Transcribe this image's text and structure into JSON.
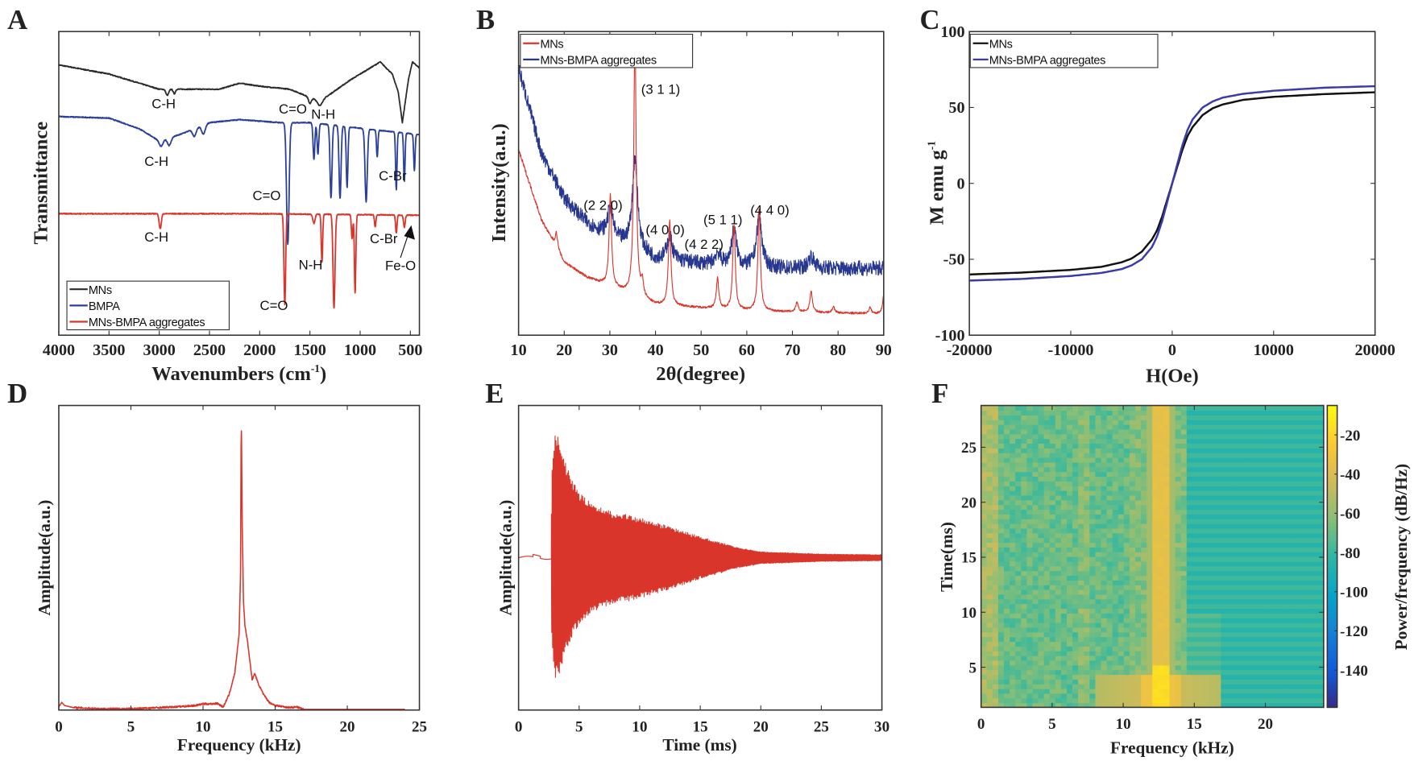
{
  "panels": [
    "A",
    "B",
    "C",
    "D",
    "E",
    "F"
  ],
  "chart_data": [
    {
      "type": "line",
      "panel": "A",
      "xlabel": "Wavenumbers (cm",
      "xlabel_sup": "-1",
      "xlabel_end": ")",
      "ylabel": "Transmittance",
      "xlim": [
        4000,
        410
      ],
      "ylim": [
        0,
        1
      ],
      "xticks": [
        4000,
        3500,
        3000,
        2500,
        2000,
        1500,
        1000,
        500
      ],
      "legend": {
        "placement": "bottom-left",
        "entries": [
          "MNs",
          "BMPA",
          "MNs-BMPA aggregates"
        ]
      },
      "series": [
        {
          "name": "MNs",
          "color": "#2b2b2b",
          "baseline": [
            [
              4000,
              0.89
            ],
            [
              3500,
              0.86
            ],
            [
              3000,
              0.81
            ],
            [
              2400,
              0.81
            ],
            [
              2200,
              0.83
            ],
            [
              2000,
              0.82
            ],
            [
              1700,
              0.81
            ],
            [
              1550,
              0.79
            ],
            [
              1400,
              0.77
            ],
            [
              1100,
              0.84
            ],
            [
              800,
              0.9
            ],
            [
              680,
              0.86
            ],
            [
              620,
              0.8
            ],
            [
              580,
              0.7
            ],
            [
              520,
              0.84
            ],
            [
              480,
              0.9
            ],
            [
              410,
              0.88
            ]
          ],
          "peaks": [
            [
              2920,
              0.02,
              20
            ],
            [
              2850,
              0.015,
              15
            ],
            [
              1500,
              0.02,
              20
            ],
            [
              1400,
              0.015,
              30
            ]
          ]
        },
        {
          "name": "BMPA",
          "color": "#2a3f9a",
          "baseline": [
            [
              4000,
              0.72
            ],
            [
              3500,
              0.715
            ],
            [
              3200,
              0.68
            ],
            [
              3000,
              0.64
            ],
            [
              2800,
              0.66
            ],
            [
              2500,
              0.7
            ],
            [
              2200,
              0.71
            ],
            [
              1800,
              0.7
            ],
            [
              1500,
              0.7
            ],
            [
              410,
              0.66
            ]
          ],
          "peaks": [
            [
              2980,
              0.02,
              25
            ],
            [
              2900,
              0.025,
              25
            ],
            [
              2650,
              0.025,
              25
            ],
            [
              2560,
              0.03,
              25
            ],
            [
              1720,
              0.4,
              18
            ],
            [
              1460,
              0.12,
              12
            ],
            [
              1420,
              0.1,
              12
            ],
            [
              1290,
              0.24,
              14
            ],
            [
              1200,
              0.24,
              14
            ],
            [
              1130,
              0.2,
              12
            ],
            [
              940,
              0.24,
              16
            ],
            [
              830,
              0.09,
              10
            ],
            [
              640,
              0.19,
              10
            ],
            [
              560,
              0.16,
              10
            ],
            [
              460,
              0.12,
              10
            ]
          ]
        },
        {
          "name": "MNs-BMPA aggregates",
          "color": "#d9352b",
          "baseline": [
            [
              4000,
              0.4
            ],
            [
              2000,
              0.4
            ],
            [
              410,
              0.395
            ]
          ],
          "peaks": [
            [
              2990,
              0.05,
              15
            ],
            [
              1750,
              0.3,
              12
            ],
            [
              1460,
              0.03,
              15
            ],
            [
              1380,
              0.16,
              10
            ],
            [
              1260,
              0.31,
              14
            ],
            [
              1080,
              0.08,
              10
            ],
            [
              1050,
              0.26,
              10
            ],
            [
              850,
              0.04,
              10
            ],
            [
              640,
              0.06,
              10
            ],
            [
              560,
              0.04,
              12
            ]
          ]
        }
      ],
      "annotations": [
        "C-H",
        "C=O",
        "N-H",
        "C-H",
        "C=O",
        "C-Br",
        "C-H",
        "N-H",
        "C=O",
        "C-Br",
        "Fe-O"
      ]
    },
    {
      "type": "line",
      "panel": "B",
      "xlabel": "2θ(degree)",
      "ylabel": "Intensity(a.u.)",
      "xlim": [
        10,
        90
      ],
      "ylim": [
        0,
        1
      ],
      "xticks": [
        10,
        20,
        30,
        40,
        50,
        60,
        70,
        80,
        90
      ],
      "legend": {
        "placement": "top-left",
        "entries": [
          "MNs",
          "MNs-BMPA aggregates"
        ]
      },
      "series": [
        {
          "name": "MNs",
          "color": "#d9352b",
          "baseline": [
            [
              10,
              0.61
            ],
            [
              15,
              0.38
            ],
            [
              20,
              0.24
            ],
            [
              25,
              0.19
            ],
            [
              30,
              0.16
            ],
            [
              40,
              0.1
            ],
            [
              60,
              0.08
            ],
            [
              90,
              0.07
            ]
          ],
          "peaks": [
            [
              18.3,
              0.05
            ],
            [
              30.1,
              0.3
            ],
            [
              35.5,
              0.85
            ],
            [
              37.1,
              0.05
            ],
            [
              43.1,
              0.28
            ],
            [
              53.6,
              0.1
            ],
            [
              57.2,
              0.28
            ],
            [
              62.7,
              0.34
            ],
            [
              71,
              0.03
            ],
            [
              74.1,
              0.07
            ],
            [
              79,
              0.02
            ],
            [
              87,
              0.02
            ],
            [
              90,
              0.06
            ]
          ]
        },
        {
          "name": "MNs-BMPA aggregates",
          "color": "#27378f",
          "baseline": [
            [
              10,
              0.88
            ],
            [
              15,
              0.6
            ],
            [
              20,
              0.45
            ],
            [
              25,
              0.37
            ],
            [
              30,
              0.32
            ],
            [
              40,
              0.25
            ],
            [
              60,
              0.22
            ],
            [
              90,
              0.22
            ]
          ],
          "peaks": [
            [
              30.1,
              0.1
            ],
            [
              35.5,
              0.3
            ],
            [
              43.1,
              0.08
            ],
            [
              53.6,
              0.04
            ],
            [
              57.2,
              0.12
            ],
            [
              62.7,
              0.17
            ],
            [
              74.1,
              0.04
            ]
          ]
        }
      ],
      "annotations": [
        "(3 1 1)",
        "(2 2 0)",
        "(4 0 0)",
        "(4 2 2)",
        "(5 1 1)",
        "(4 4 0)"
      ]
    },
    {
      "type": "line",
      "panel": "C",
      "xlabel": "H(Oe)",
      "ylabel": "M emu g",
      "ylabel_sup": "-1",
      "xlim": [
        -20000,
        20000
      ],
      "ylim": [
        -100,
        100
      ],
      "xticks": [
        -20000,
        -10000,
        0,
        10000,
        20000
      ],
      "yticks": [
        -100,
        -50,
        0,
        50,
        100
      ],
      "legend": {
        "placement": "top-left",
        "entries": [
          "MNs",
          "MNs-BMPA aggregates"
        ]
      },
      "x": [
        -20000,
        -15000,
        -10000,
        -7000,
        -5000,
        -4000,
        -3000,
        -2000,
        -1500,
        -1000,
        -500,
        0,
        500,
        1000,
        1500,
        2000,
        3000,
        4000,
        5000,
        7000,
        10000,
        15000,
        20000
      ],
      "series": [
        {
          "name": "MNs",
          "color": "#111111",
          "values": [
            -60,
            -58.8,
            -57,
            -55,
            -52,
            -49.5,
            -45,
            -37,
            -31,
            -22,
            -11,
            0,
            11,
            22,
            31,
            37,
            45,
            49.5,
            52,
            55,
            57,
            58.8,
            60
          ]
        },
        {
          "name": "MNs-BMPA aggregates",
          "color": "#3a3aa8",
          "values": [
            -64,
            -63,
            -61,
            -59,
            -56.5,
            -54,
            -50,
            -42,
            -35,
            -25,
            -12.5,
            0,
            12.5,
            25,
            35,
            42,
            50,
            54,
            56.5,
            59,
            61,
            63,
            64
          ]
        }
      ]
    },
    {
      "type": "line",
      "panel": "D",
      "xlabel": "Frequency (kHz)",
      "ylabel": "Amplitude(a.u.)",
      "xlim": [
        0,
        25
      ],
      "ylim": [
        0,
        1
      ],
      "xticks": [
        0,
        5,
        10,
        15,
        20,
        25
      ],
      "series": [
        {
          "color": "#d9352b",
          "points": [
            [
              0,
              0.01
            ],
            [
              0.2,
              0.025
            ],
            [
              0.4,
              0.015
            ],
            [
              1,
              0.008
            ],
            [
              3,
              0.004
            ],
            [
              5,
              0.004
            ],
            [
              8,
              0.01
            ],
            [
              9.5,
              0.015
            ],
            [
              10,
              0.02
            ],
            [
              10.5,
              0.02
            ],
            [
              11,
              0.022
            ],
            [
              11.4,
              0.01
            ],
            [
              11.8,
              0.05
            ],
            [
              12.2,
              0.12
            ],
            [
              12.5,
              0.25
            ],
            [
              12.6,
              0.45
            ],
            [
              12.65,
              0.97
            ],
            [
              12.72,
              0.6
            ],
            [
              12.8,
              0.36
            ],
            [
              12.9,
              0.28
            ],
            [
              13.1,
              0.22
            ],
            [
              13.4,
              0.1
            ],
            [
              13.6,
              0.12
            ],
            [
              13.8,
              0.09
            ],
            [
              14.2,
              0.05
            ],
            [
              14.6,
              0.025
            ],
            [
              15,
              0.015
            ],
            [
              16,
              0.008
            ],
            [
              16.5,
              0.01
            ],
            [
              17,
              0.002
            ],
            [
              24,
              0.002
            ]
          ]
        }
      ]
    },
    {
      "type": "line",
      "panel": "E",
      "xlabel": "Time (ms)",
      "ylabel": "Amplitude(a.u.)",
      "xlim": [
        0,
        30
      ],
      "ylim": [
        -1,
        1
      ],
      "xticks": [
        0,
        5,
        10,
        15,
        20,
        25,
        30
      ],
      "series": [
        {
          "color": "#d9352b",
          "carrier_frequency_khz": 12.7,
          "envelope": [
            [
              0,
              0.005
            ],
            [
              1.5,
              0.02
            ],
            [
              2.6,
              0.01
            ],
            [
              2.75,
              0.6
            ],
            [
              3.0,
              0.82
            ],
            [
              3.3,
              0.8
            ],
            [
              4,
              0.6
            ],
            [
              5,
              0.44
            ],
            [
              6,
              0.36
            ],
            [
              8,
              0.3
            ],
            [
              10,
              0.27
            ],
            [
              12,
              0.22
            ],
            [
              15,
              0.14
            ],
            [
              18,
              0.07
            ],
            [
              20,
              0.04
            ],
            [
              25,
              0.025
            ],
            [
              30,
              0.02
            ]
          ]
        }
      ]
    },
    {
      "type": "heatmap",
      "panel": "F",
      "xlabel": "Frequency (kHz)",
      "ylabel": "Time(ms)",
      "colorbar_label": "Power/frequency (dB/Hz)",
      "xlim": [
        0,
        24.1
      ],
      "ylim": [
        1.35,
        28.8
      ],
      "xticks": [
        0,
        5,
        10,
        15,
        20
      ],
      "yticks": [
        5,
        10,
        15,
        20,
        25
      ],
      "clim": [
        -159,
        -5
      ],
      "cticks": [
        -20,
        -40,
        -60,
        -80,
        -100,
        -120,
        -140
      ],
      "colormap": [
        "#352a87",
        "#0f5cdd",
        "#1481d6",
        "#06a4ca",
        "#2eb7a4",
        "#87bf77",
        "#d1bb59",
        "#fec832",
        "#f9fb0e"
      ],
      "dominant_frequency_khz": 12.7
    }
  ]
}
